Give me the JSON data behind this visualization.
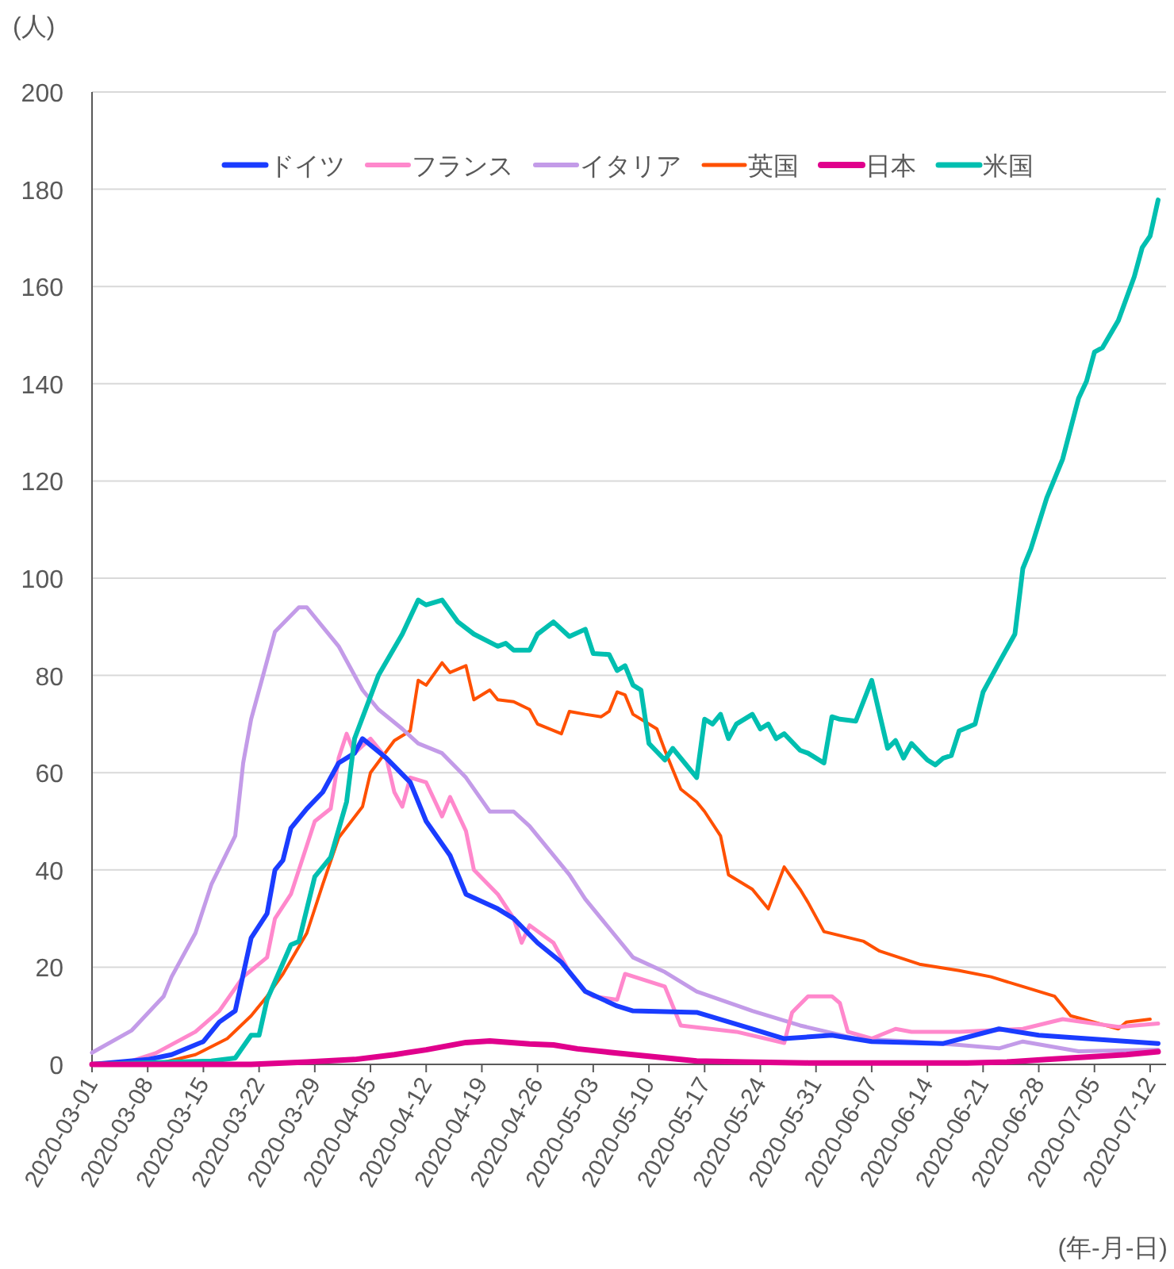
{
  "chart_data": {
    "type": "line",
    "xlabel": "(年-月-日)",
    "ylabel": "(人)",
    "xlim": [
      "2020-03-01",
      "2020-07-14"
    ],
    "ylim": [
      0,
      200
    ],
    "yticks": [
      0,
      20,
      40,
      60,
      80,
      100,
      120,
      140,
      160,
      180,
      200
    ],
    "xticks": [
      "2020-03-01",
      "2020-03-08",
      "2020-03-15",
      "2020-03-22",
      "2020-03-29",
      "2020-04-05",
      "2020-04-12",
      "2020-04-19",
      "2020-04-26",
      "2020-05-03",
      "2020-05-10",
      "2020-05-17",
      "2020-05-24",
      "2020-05-31",
      "2020-06-07",
      "2020-06-14",
      "2020-06-21",
      "2020-06-28",
      "2020-07-05",
      "2020-07-12"
    ],
    "grid": "y",
    "legend": "top",
    "line_style": "solid",
    "marker": "none",
    "series": [
      {
        "name": "ドイツ",
        "color": "#1a3cff",
        "x": [
          "2020-03-01",
          "2020-03-08",
          "2020-03-11",
          "2020-03-15",
          "2020-03-17",
          "2020-03-19",
          "2020-03-21",
          "2020-03-23",
          "2020-03-24",
          "2020-03-25",
          "2020-03-26",
          "2020-03-28",
          "2020-03-30",
          "2020-04-01",
          "2020-04-03",
          "2020-04-04",
          "2020-04-07",
          "2020-04-10",
          "2020-04-12",
          "2020-04-15",
          "2020-04-17",
          "2020-04-21",
          "2020-04-23",
          "2020-04-26",
          "2020-04-29",
          "2020-05-02",
          "2020-05-06",
          "2020-05-08",
          "2020-05-16",
          "2020-05-23",
          "2020-05-27",
          "2020-06-02",
          "2020-06-07",
          "2020-06-16",
          "2020-06-23",
          "2020-06-28",
          "2020-07-04",
          "2020-07-13"
        ],
        "values": [
          0,
          1,
          2,
          4.7,
          8.7,
          11,
          26,
          31,
          40,
          42,
          48.6,
          52.6,
          56,
          62,
          64,
          67,
          63,
          58,
          50,
          43,
          35,
          32,
          30,
          25,
          21,
          15,
          12,
          11,
          10.7,
          7.3,
          5.3,
          6,
          4.7,
          4.3,
          7.3,
          6,
          5.3,
          4.3
        ]
      },
      {
        "name": "フランス",
        "color": "#ff88cc",
        "x": [
          "2020-03-01",
          "2020-03-06",
          "2020-03-09",
          "2020-03-14",
          "2020-03-17",
          "2020-03-20",
          "2020-03-23",
          "2020-03-24",
          "2020-03-26",
          "2020-03-29",
          "2020-03-31",
          "2020-04-01",
          "2020-04-02",
          "2020-04-03",
          "2020-04-05",
          "2020-04-07",
          "2020-04-08",
          "2020-04-09",
          "2020-04-10",
          "2020-04-12",
          "2020-04-14",
          "2020-04-15",
          "2020-04-17",
          "2020-04-18",
          "2020-04-21",
          "2020-04-23",
          "2020-04-24",
          "2020-04-25",
          "2020-04-28",
          "2020-04-30",
          "2020-05-02",
          "2020-05-03",
          "2020-05-06",
          "2020-05-07",
          "2020-05-12",
          "2020-05-14",
          "2020-05-21",
          "2020-05-27",
          "2020-05-28",
          "2020-05-30",
          "2020-06-02",
          "2020-06-03",
          "2020-06-04",
          "2020-06-07",
          "2020-06-10",
          "2020-06-12",
          "2020-06-18",
          "2020-06-26",
          "2020-07-01",
          "2020-07-08",
          "2020-07-13"
        ],
        "values": [
          0,
          0.7,
          2.3,
          6.7,
          11,
          18,
          22,
          30,
          35,
          50,
          52.6,
          63,
          68,
          64,
          67,
          63,
          56,
          53,
          59,
          58,
          51,
          55,
          48,
          40,
          35,
          30,
          25,
          28.6,
          25,
          19,
          15,
          14,
          13.3,
          18.6,
          16,
          8,
          6.7,
          4.4,
          10.7,
          14,
          14,
          12.6,
          6.7,
          5.3,
          7.3,
          6.7,
          6.7,
          7.3,
          9.3,
          7.7,
          8.4
        ]
      },
      {
        "name": "イタリア",
        "color": "#c39be8",
        "x": [
          "2020-03-01",
          "2020-03-06",
          "2020-03-10",
          "2020-03-11",
          "2020-03-14",
          "2020-03-16",
          "2020-03-19",
          "2020-03-20",
          "2020-03-21",
          "2020-03-23",
          "2020-03-24",
          "2020-03-27",
          "2020-03-28",
          "2020-03-30",
          "2020-04-01",
          "2020-04-04",
          "2020-04-06",
          "2020-04-09",
          "2020-04-11",
          "2020-04-14",
          "2020-04-17",
          "2020-04-20",
          "2020-04-23",
          "2020-04-25",
          "2020-04-28",
          "2020-04-30",
          "2020-05-02",
          "2020-05-04",
          "2020-05-08",
          "2020-05-12",
          "2020-05-16",
          "2020-05-23",
          "2020-05-29",
          "2020-06-05",
          "2020-06-12",
          "2020-06-18",
          "2020-06-23",
          "2020-06-26",
          "2020-07-03",
          "2020-07-13"
        ],
        "values": [
          2.4,
          7,
          14,
          18,
          27,
          37,
          47,
          62,
          71,
          83,
          89,
          94,
          94,
          90,
          86,
          77,
          73,
          69,
          66,
          64,
          59,
          52,
          52,
          49,
          43,
          39,
          34,
          30,
          22,
          19,
          15,
          11,
          8,
          5.3,
          4.7,
          4,
          3.3,
          4.7,
          2.7,
          3
        ]
      },
      {
        "name": "英国",
        "color": "#ff5000",
        "x": [
          "2020-03-01",
          "2020-03-10",
          "2020-03-14",
          "2020-03-18",
          "2020-03-21",
          "2020-03-23",
          "2020-03-25",
          "2020-03-28",
          "2020-03-30",
          "2020-04-01",
          "2020-04-04",
          "2020-04-05",
          "2020-04-08",
          "2020-04-10",
          "2020-04-11",
          "2020-04-12",
          "2020-04-14",
          "2020-04-15",
          "2020-04-17",
          "2020-04-18",
          "2020-04-20",
          "2020-04-21",
          "2020-04-23",
          "2020-04-25",
          "2020-04-26",
          "2020-04-29",
          "2020-04-30",
          "2020-05-02",
          "2020-05-04",
          "2020-05-05",
          "2020-05-06",
          "2020-05-07",
          "2020-05-08",
          "2020-05-11",
          "2020-05-12",
          "2020-05-14",
          "2020-05-16",
          "2020-05-17",
          "2020-05-19",
          "2020-05-20",
          "2020-05-23",
          "2020-05-25",
          "2020-05-27",
          "2020-05-29",
          "2020-05-30",
          "2020-06-01",
          "2020-06-06",
          "2020-06-08",
          "2020-06-13",
          "2020-06-18",
          "2020-06-22",
          "2020-06-26",
          "2020-06-30",
          "2020-07-02",
          "2020-07-08",
          "2020-07-09",
          "2020-07-12"
        ],
        "values": [
          0,
          0.4,
          2,
          5.3,
          10,
          14,
          18.6,
          27,
          37,
          46.6,
          53,
          60,
          66.6,
          68.6,
          79,
          78,
          82.6,
          80.6,
          82,
          75,
          77,
          75,
          74.6,
          73,
          70,
          68,
          72.6,
          72,
          71.5,
          72.6,
          76.6,
          76,
          72,
          69,
          64.6,
          56.6,
          54,
          52,
          47,
          39,
          36,
          32,
          40.6,
          36,
          33.3,
          27.3,
          25.3,
          23.3,
          20.6,
          19.3,
          18,
          16,
          14,
          10,
          7.3,
          8.7,
          9.3
        ]
      },
      {
        "name": "日本",
        "color": "#e0008c",
        "x": [
          "2020-03-01",
          "2020-03-21",
          "2020-03-28",
          "2020-04-03",
          "2020-04-08",
          "2020-04-12",
          "2020-04-17",
          "2020-04-20",
          "2020-04-25",
          "2020-04-28",
          "2020-05-01",
          "2020-05-05",
          "2020-05-08",
          "2020-05-11",
          "2020-05-16",
          "2020-05-22",
          "2020-05-30",
          "2020-06-19",
          "2020-06-24",
          "2020-06-29",
          "2020-07-04",
          "2020-07-09",
          "2020-07-13"
        ],
        "values": [
          0,
          0,
          0.5,
          1,
          2,
          3,
          4.5,
          4.8,
          4.2,
          4,
          3.2,
          2.5,
          2,
          1.5,
          0.7,
          0.5,
          0.3,
          0.3,
          0.5,
          1,
          1.5,
          2,
          2.6
        ]
      },
      {
        "name": "米国",
        "color": "#00bfb0",
        "x": [
          "2020-03-01",
          "2020-03-16",
          "2020-03-19",
          "2020-03-21",
          "2020-03-22",
          "2020-03-23",
          "2020-03-26",
          "2020-03-27",
          "2020-03-29",
          "2020-03-31",
          "2020-04-02",
          "2020-04-03",
          "2020-04-06",
          "2020-04-09",
          "2020-04-11",
          "2020-04-12",
          "2020-04-14",
          "2020-04-16",
          "2020-04-18",
          "2020-04-21",
          "2020-04-22",
          "2020-04-23",
          "2020-04-25",
          "2020-04-26",
          "2020-04-28",
          "2020-04-30",
          "2020-05-02",
          "2020-05-03",
          "2020-05-05",
          "2020-05-06",
          "2020-05-07",
          "2020-05-08",
          "2020-05-09",
          "2020-05-10",
          "2020-05-12",
          "2020-05-13",
          "2020-05-14",
          "2020-05-16",
          "2020-05-17",
          "2020-05-18",
          "2020-05-19",
          "2020-05-20",
          "2020-05-21",
          "2020-05-23",
          "2020-05-24",
          "2020-05-25",
          "2020-05-26",
          "2020-05-27",
          "2020-05-29",
          "2020-05-30",
          "2020-06-01",
          "2020-06-02",
          "2020-06-03",
          "2020-06-05",
          "2020-06-07",
          "2020-06-09",
          "2020-06-10",
          "2020-06-11",
          "2020-06-12",
          "2020-06-14",
          "2020-06-15",
          "2020-06-16",
          "2020-06-17",
          "2020-06-18",
          "2020-06-20",
          "2020-06-21",
          "2020-06-23",
          "2020-06-25",
          "2020-06-26",
          "2020-06-27",
          "2020-06-29",
          "2020-07-01",
          "2020-07-03",
          "2020-07-04",
          "2020-07-05",
          "2020-07-06",
          "2020-07-08",
          "2020-07-10",
          "2020-07-11",
          "2020-07-12",
          "2020-07-13"
        ],
        "values": [
          0,
          0.7,
          1.3,
          6,
          6,
          13.3,
          24.6,
          25.3,
          38.6,
          42.6,
          54,
          67,
          80,
          88.5,
          95.5,
          94.5,
          95.5,
          91,
          88.5,
          86,
          86.6,
          85.2,
          85.2,
          88.5,
          91,
          88,
          89.5,
          84.5,
          84.3,
          81,
          82,
          78,
          77,
          66,
          62.6,
          65,
          63,
          59,
          71,
          70,
          72,
          67,
          70,
          72,
          69,
          70,
          67,
          68,
          64.6,
          64,
          62,
          71.5,
          71,
          70.6,
          79,
          65,
          66.6,
          63,
          66,
          62.6,
          61.6,
          63,
          63.5,
          68.6,
          70,
          76.6,
          82.6,
          88.5,
          102,
          106,
          116.5,
          124.5,
          137,
          140.5,
          146.5,
          147.4,
          153,
          162,
          168,
          170.4,
          177.8
        ]
      }
    ]
  }
}
